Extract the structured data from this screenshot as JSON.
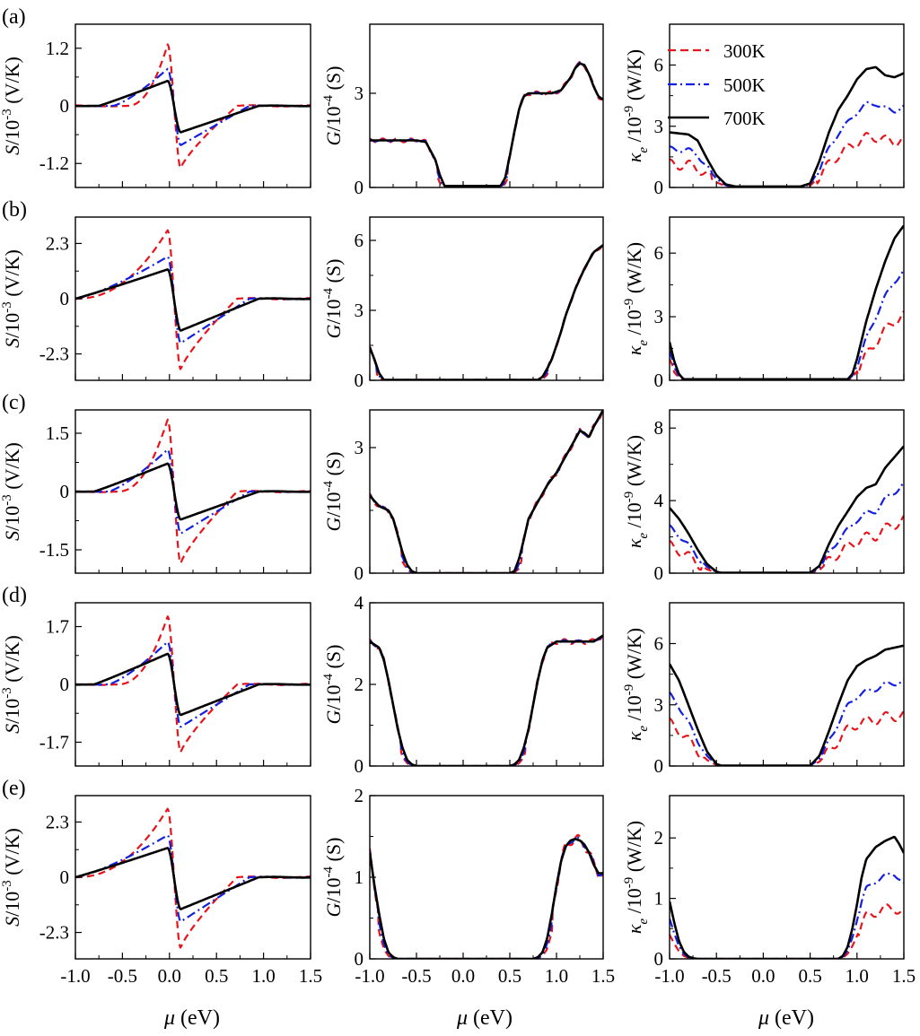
{
  "colors": {
    "300K": "#e8141b",
    "500K": "#1420e0",
    "700K": "#000000"
  },
  "legend": [
    {
      "label": "300K",
      "style": "dashed"
    },
    {
      "label": "500K",
      "style": "dash-dot"
    },
    {
      "label": "700K",
      "style": "solid"
    }
  ],
  "xlabel_parts": [
    "μ",
    " (eV)"
  ],
  "chart_data": {
    "type": "line",
    "x_range": [
      -1.0,
      1.5
    ],
    "x_ticks": [
      -1.0,
      -0.5,
      0.0,
      0.5,
      1.0,
      1.5
    ],
    "x_tick_labels": [
      "-1.0",
      "-0.5",
      "0.0",
      "0.5",
      "1.0",
      "1.5"
    ],
    "rows": [
      {
        "label": "(a)",
        "S": {
          "ylim": [
            -1.7,
            1.7
          ],
          "ticks": [
            -1.2,
            0,
            1.2
          ],
          "tick_labels": [
            "-1.2",
            "0",
            "1.2"
          ],
          "peak": [
            1.28,
            0.77,
            0.52
          ],
          "valley": [
            -1.3,
            -0.82,
            -0.55
          ],
          "x_start": [
            -0.45,
            -0.6,
            -0.75
          ]
        },
        "G": {
          "ylim": [
            0,
            5.2
          ],
          "ticks": [
            0,
            3
          ],
          "tick_labels": [
            "0",
            "3"
          ],
          "x": [
            -1.0,
            -0.5,
            -0.4,
            -0.3,
            -0.25,
            -0.2,
            0.4,
            0.45,
            0.5,
            0.55,
            0.6,
            0.65,
            0.7,
            0.75,
            0.85,
            0.95,
            1.05,
            1.15,
            1.2,
            1.25,
            1.3,
            1.35,
            1.4,
            1.45,
            1.5
          ],
          "y": [
            1.5,
            1.5,
            1.45,
            0.9,
            0.4,
            0.05,
            0.05,
            0.3,
            1.0,
            1.8,
            2.5,
            2.9,
            3.0,
            3.0,
            3.0,
            3.0,
            3.1,
            3.5,
            3.8,
            3.95,
            3.9,
            3.6,
            3.2,
            2.9,
            2.8
          ]
        },
        "K": {
          "ylim": [
            0,
            8
          ],
          "ticks": [
            0,
            3,
            6
          ],
          "tick_labels": [
            "0",
            "3",
            "6"
          ],
          "x": [
            -1.0,
            -0.8,
            -0.7,
            -0.6,
            -0.5,
            -0.4,
            -0.3,
            0.4,
            0.5,
            0.6,
            0.7,
            0.8,
            0.9,
            1.0,
            1.1,
            1.2,
            1.3,
            1.4,
            1.5
          ],
          "y700": [
            2.7,
            2.6,
            2.3,
            1.4,
            0.6,
            0.15,
            0.05,
            0.05,
            0.2,
            1.3,
            2.7,
            3.8,
            4.5,
            5.3,
            5.8,
            5.9,
            5.5,
            5.4,
            5.6
          ]
        }
      },
      {
        "label": "(b)",
        "S": {
          "ylim": [
            -3.4,
            3.4
          ],
          "ticks": [
            -2.3,
            0,
            2.3
          ],
          "tick_labels": [
            "-2.3",
            "0",
            "2.3"
          ],
          "peak": [
            2.85,
            1.75,
            1.22
          ],
          "valley": [
            -2.95,
            -1.85,
            -1.33
          ],
          "x_start": [
            -1.0,
            -1.0,
            -1.0
          ]
        },
        "G": {
          "ylim": [
            0,
            7
          ],
          "ticks": [
            0,
            3,
            6
          ],
          "tick_labels": [
            "0",
            "3",
            "6"
          ],
          "x": [
            -1.0,
            -0.95,
            -0.9,
            -0.85,
            0.8,
            0.85,
            0.9,
            0.95,
            1.0,
            1.05,
            1.1,
            1.2,
            1.3,
            1.4,
            1.5
          ],
          "y": [
            1.4,
            0.9,
            0.3,
            0.02,
            0.02,
            0.15,
            0.5,
            0.9,
            1.5,
            2.1,
            2.8,
            3.9,
            4.8,
            5.5,
            5.8
          ]
        },
        "K": {
          "ylim": [
            0,
            7.7
          ],
          "ticks": [
            0,
            3,
            6
          ],
          "tick_labels": [
            "0",
            "3",
            "6"
          ],
          "x": [
            -1.0,
            -0.95,
            -0.9,
            -0.85,
            0.9,
            0.95,
            1.0,
            1.05,
            1.1,
            1.2,
            1.3,
            1.4,
            1.5
          ],
          "y700": [
            1.8,
            0.9,
            0.3,
            0.05,
            0.05,
            0.3,
            1.0,
            1.9,
            2.8,
            4.3,
            5.6,
            6.7,
            7.3
          ]
        }
      },
      {
        "label": "(c)",
        "S": {
          "ylim": [
            -2.1,
            2.1
          ],
          "ticks": [
            -1.5,
            0,
            1.5
          ],
          "tick_labels": [
            "-1.5",
            "0",
            "1.5"
          ],
          "peak": [
            1.85,
            1.08,
            0.72
          ],
          "valley": [
            -1.85,
            -1.08,
            -0.72
          ],
          "x_start": [
            -0.55,
            -0.65,
            -0.8
          ]
        },
        "G": {
          "ylim": [
            0,
            3.9
          ],
          "ticks": [
            0,
            3
          ],
          "tick_labels": [
            "0",
            "3"
          ],
          "x": [
            -1.0,
            -0.9,
            -0.8,
            -0.75,
            -0.7,
            -0.65,
            -0.6,
            -0.55,
            -0.5,
            0.5,
            0.55,
            0.6,
            0.65,
            0.7,
            0.8,
            0.9,
            1.0,
            1.1,
            1.2,
            1.25,
            1.3,
            1.35,
            1.4,
            1.45,
            1.5
          ],
          "y": [
            1.85,
            1.6,
            1.5,
            1.3,
            0.9,
            0.5,
            0.2,
            0.05,
            0.0,
            0.0,
            0.05,
            0.35,
            0.8,
            1.3,
            1.7,
            2.1,
            2.4,
            2.8,
            3.2,
            3.4,
            3.35,
            3.25,
            3.5,
            3.7,
            3.9
          ]
        },
        "K": {
          "ylim": [
            0,
            9
          ],
          "ticks": [
            0,
            4,
            8
          ],
          "tick_labels": [
            "0",
            "4",
            "8"
          ],
          "x": [
            -1.0,
            -0.9,
            -0.8,
            -0.7,
            -0.6,
            -0.5,
            -0.45,
            0.5,
            0.6,
            0.7,
            0.8,
            0.9,
            1.0,
            1.1,
            1.2,
            1.3,
            1.4,
            1.5
          ],
          "y700": [
            3.6,
            3.0,
            2.2,
            1.3,
            0.5,
            0.08,
            0.02,
            0.02,
            0.4,
            1.6,
            2.6,
            3.4,
            4.2,
            4.7,
            4.9,
            5.8,
            6.4,
            7.0
          ]
        }
      },
      {
        "label": "(d)",
        "S": {
          "ylim": [
            -2.4,
            2.4
          ],
          "ticks": [
            -1.7,
            0,
            1.7
          ],
          "tick_labels": [
            "-1.7",
            "0",
            "1.7"
          ],
          "peak": [
            2.0,
            1.25,
            0.9
          ],
          "valley": [
            -2.0,
            -1.25,
            -0.9
          ],
          "x_start": [
            -0.55,
            -0.65,
            -0.8
          ]
        },
        "G": {
          "ylim": [
            0,
            4
          ],
          "ticks": [
            0,
            2,
            4
          ],
          "tick_labels": [
            "0",
            "2",
            "4"
          ],
          "x": [
            -1.0,
            -0.9,
            -0.85,
            -0.8,
            -0.75,
            -0.7,
            -0.65,
            -0.6,
            -0.55,
            -0.5,
            0.5,
            0.55,
            0.6,
            0.65,
            0.7,
            0.75,
            0.8,
            0.85,
            0.9,
            1.0,
            1.2,
            1.4,
            1.5
          ],
          "y": [
            3.05,
            2.9,
            2.6,
            2.1,
            1.5,
            0.9,
            0.45,
            0.15,
            0.04,
            0.0,
            0.0,
            0.04,
            0.15,
            0.45,
            0.9,
            1.5,
            2.1,
            2.6,
            2.9,
            3.05,
            3.05,
            3.05,
            3.2
          ]
        },
        "K": {
          "ylim": [
            0,
            8
          ],
          "ticks": [
            0,
            3,
            6
          ],
          "tick_labels": [
            "0",
            "3",
            "6"
          ],
          "x": [
            -1.0,
            -0.9,
            -0.8,
            -0.7,
            -0.6,
            -0.5,
            -0.45,
            0.5,
            0.6,
            0.7,
            0.8,
            0.9,
            1.0,
            1.1,
            1.2,
            1.3,
            1.4,
            1.5
          ],
          "y700": [
            5.0,
            4.2,
            3.0,
            1.8,
            0.7,
            0.1,
            0.02,
            0.02,
            0.5,
            1.7,
            3.0,
            4.2,
            4.9,
            5.2,
            5.4,
            5.7,
            5.8,
            5.9
          ]
        }
      },
      {
        "label": "(e)",
        "S": {
          "ylim": [
            -3.4,
            3.4
          ],
          "ticks": [
            -2.3,
            0,
            2.3
          ],
          "tick_labels": [
            "-2.3",
            "0",
            "2.3"
          ],
          "peak": [
            2.85,
            1.75,
            1.22
          ],
          "valley": [
            -2.95,
            -1.85,
            -1.33
          ],
          "x_start": [
            -1.0,
            -1.0,
            -1.0
          ]
        },
        "G": {
          "ylim": [
            0,
            2
          ],
          "ticks": [
            0,
            1,
            2
          ],
          "tick_labels": [
            "0",
            "1",
            "2"
          ],
          "x": [
            -1.0,
            -0.95,
            -0.9,
            -0.85,
            -0.8,
            -0.75,
            -0.7,
            0.75,
            0.8,
            0.85,
            0.9,
            0.95,
            1.0,
            1.05,
            1.1,
            1.15,
            1.2,
            1.25,
            1.3,
            1.35,
            1.4,
            1.45,
            1.5
          ],
          "y": [
            1.3,
            0.9,
            0.55,
            0.25,
            0.08,
            0.02,
            0.0,
            0.0,
            0.02,
            0.08,
            0.25,
            0.55,
            0.9,
            1.2,
            1.38,
            1.45,
            1.47,
            1.45,
            1.4,
            1.3,
            1.15,
            1.05,
            1.05
          ]
        },
        "K": {
          "ylim": [
            0,
            2.7
          ],
          "ticks": [
            0,
            1,
            2
          ],
          "tick_labels": [
            "0",
            "1",
            "2"
          ],
          "x": [
            -1.0,
            -0.95,
            -0.9,
            -0.85,
            -0.8,
            -0.75,
            -0.7,
            0.8,
            0.85,
            0.9,
            0.95,
            1.0,
            1.05,
            1.1,
            1.2,
            1.3,
            1.4,
            1.45,
            1.5
          ],
          "y700": [
            0.95,
            0.6,
            0.3,
            0.12,
            0.04,
            0.01,
            0.0,
            0.0,
            0.05,
            0.2,
            0.5,
            0.9,
            1.35,
            1.65,
            1.85,
            1.95,
            2.02,
            1.9,
            1.75
          ]
        }
      }
    ]
  }
}
